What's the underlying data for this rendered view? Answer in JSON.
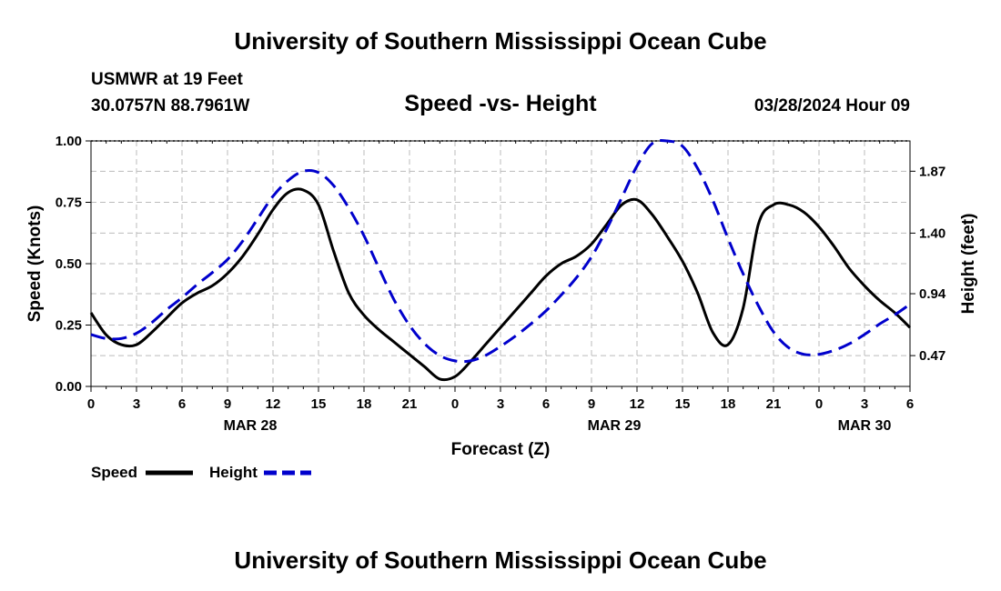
{
  "header": {
    "title": "University of Southern Mississippi Ocean Cube",
    "station": "USMWR at 19 Feet",
    "coords": "30.0757N  88.7961W",
    "datetime": "03/28/2024 Hour 09"
  },
  "footer": {
    "title": "University of Southern Mississippi Ocean Cube"
  },
  "chart_data": {
    "type": "line",
    "title": "Speed -vs- Height",
    "xlabel": "Forecast (Z)",
    "ylabel": "Speed (Knots)",
    "y2label": "Height (feet)",
    "x_range_hours": [
      0,
      54
    ],
    "ylim": [
      0,
      1.0
    ],
    "y2lim": [
      0.236,
      2.1
    ],
    "y_ticks": [
      "0.00",
      "0.25",
      "0.50",
      "0.75",
      "1.00"
    ],
    "y2_ticks": [
      "0.47",
      "0.94",
      "1.40",
      "1.87"
    ],
    "x_ticks": [
      "0",
      "3",
      "6",
      "9",
      "12",
      "15",
      "18",
      "21",
      "0",
      "3",
      "6",
      "9",
      "12",
      "15",
      "18",
      "21",
      "0",
      "3",
      "6"
    ],
    "date_labels": [
      {
        "label": "MAR 28",
        "hour": 10.5
      },
      {
        "label": "MAR 29",
        "hour": 34.5
      },
      {
        "label": "MAR 30",
        "hour": 51
      }
    ],
    "grid": true,
    "legend": [
      {
        "name": "Speed",
        "color": "#000000",
        "dash": "solid"
      },
      {
        "name": "Height",
        "color": "#0000cc",
        "dash": "dashed"
      }
    ],
    "series": [
      {
        "name": "Speed",
        "axis": "left",
        "color": "#000000",
        "x": [
          0,
          1,
          2,
          3,
          4,
          5,
          6,
          7,
          8,
          9,
          10,
          11,
          12,
          13,
          14,
          15,
          16,
          17,
          18,
          19,
          20,
          21,
          22,
          23,
          24,
          25,
          26,
          27,
          28,
          29,
          30,
          31,
          32,
          33,
          34,
          35,
          36,
          37,
          38,
          39,
          40,
          41,
          42,
          43,
          44,
          45,
          46,
          47,
          48,
          49,
          50,
          51,
          52,
          53,
          54
        ],
        "values": [
          0.3,
          0.21,
          0.17,
          0.17,
          0.22,
          0.28,
          0.34,
          0.38,
          0.41,
          0.46,
          0.53,
          0.62,
          0.72,
          0.79,
          0.8,
          0.74,
          0.55,
          0.38,
          0.29,
          0.23,
          0.18,
          0.13,
          0.08,
          0.03,
          0.04,
          0.1,
          0.17,
          0.24,
          0.31,
          0.38,
          0.45,
          0.5,
          0.53,
          0.58,
          0.66,
          0.74,
          0.76,
          0.7,
          0.61,
          0.51,
          0.38,
          0.22,
          0.17,
          0.32,
          0.66,
          0.74,
          0.74,
          0.71,
          0.65,
          0.57,
          0.48,
          0.41,
          0.35,
          0.3,
          0.24
        ]
      },
      {
        "name": "Height",
        "axis": "right",
        "color": "#0000cc",
        "x": [
          0,
          1,
          2,
          3,
          4,
          5,
          6,
          7,
          8,
          9,
          10,
          11,
          12,
          13,
          14,
          15,
          16,
          17,
          18,
          19,
          20,
          21,
          22,
          23,
          24,
          25,
          26,
          27,
          28,
          29,
          30,
          31,
          32,
          33,
          34,
          35,
          36,
          37,
          38,
          39,
          40,
          41,
          42,
          43,
          44,
          45,
          46,
          47,
          48,
          49,
          50,
          51,
          52,
          53,
          54
        ],
        "values": [
          0.63,
          0.6,
          0.6,
          0.64,
          0.72,
          0.82,
          0.91,
          1.01,
          1.1,
          1.2,
          1.34,
          1.51,
          1.68,
          1.8,
          1.87,
          1.86,
          1.76,
          1.59,
          1.38,
          1.13,
          0.89,
          0.7,
          0.56,
          0.47,
          0.43,
          0.43,
          0.47,
          0.54,
          0.62,
          0.71,
          0.81,
          0.93,
          1.06,
          1.22,
          1.43,
          1.67,
          1.91,
          2.08,
          2.12,
          2.06,
          1.89,
          1.65,
          1.36,
          1.09,
          0.85,
          0.65,
          0.53,
          0.48,
          0.48,
          0.51,
          0.56,
          0.63,
          0.71,
          0.78,
          0.86
        ]
      }
    ]
  }
}
